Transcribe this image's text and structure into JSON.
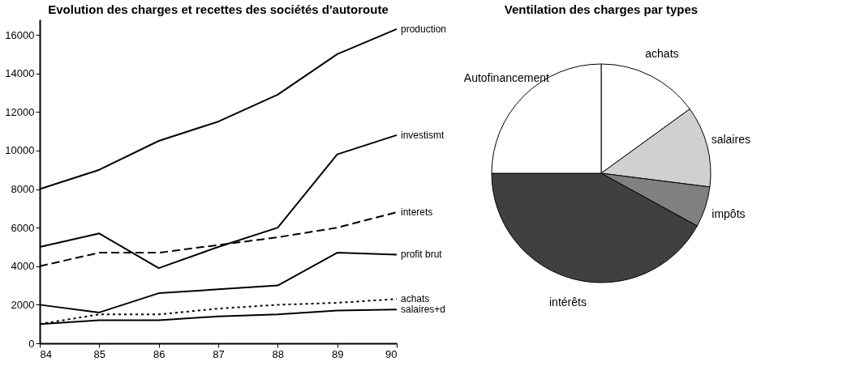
{
  "chart_data": [
    {
      "type": "line",
      "title": "Evolution des charges et recettes des sociétés d'autoroute",
      "x": [
        84,
        85,
        86,
        87,
        88,
        89,
        90
      ],
      "xlim": [
        84,
        90
      ],
      "xticks": [
        84,
        85,
        86,
        87,
        88,
        89,
        90
      ],
      "ylim": [
        0,
        16800
      ],
      "yticks": [
        0,
        2000,
        4000,
        6000,
        8000,
        10000,
        12000,
        14000,
        16000
      ],
      "grid": false,
      "legend": false,
      "series": [
        {
          "name": "production",
          "color": "#000000",
          "line_style": "solid",
          "values": [
            8000,
            9000,
            10500,
            11500,
            12900,
            15000,
            16300
          ]
        },
        {
          "name": "investismt",
          "color": "#000000",
          "line_style": "solid",
          "values": [
            5000,
            5700,
            3900,
            5000,
            6000,
            9800,
            10800
          ]
        },
        {
          "name": "interets",
          "color": "#000000",
          "line_style": "dashed",
          "values": [
            4000,
            4700,
            4700,
            5100,
            5500,
            6000,
            6800
          ]
        },
        {
          "name": "profit brut",
          "color": "#000000",
          "line_style": "solid",
          "values": [
            2000,
            1600,
            2600,
            2800,
            3000,
            4700,
            4600
          ]
        },
        {
          "name": "achats",
          "color": "#000000",
          "line_style": "dotted",
          "values": [
            1000,
            1500,
            1500,
            1800,
            2000,
            2100,
            2300
          ]
        },
        {
          "name": "salaires+d",
          "color": "#000000",
          "line_style": "solid",
          "values": [
            1000,
            1200,
            1200,
            1400,
            1500,
            1700,
            1750
          ]
        }
      ]
    },
    {
      "type": "pie",
      "title": "Ventilation des charges par types",
      "categories": [
        "achats",
        "salaires",
        "impôts",
        "intérêts",
        "Autofinancement"
      ],
      "values": [
        15,
        12,
        6,
        42,
        25
      ],
      "colors": [
        "#ffffff",
        "#d0d0d0",
        "#808080",
        "#404040",
        "#ffffff"
      ]
    }
  ]
}
